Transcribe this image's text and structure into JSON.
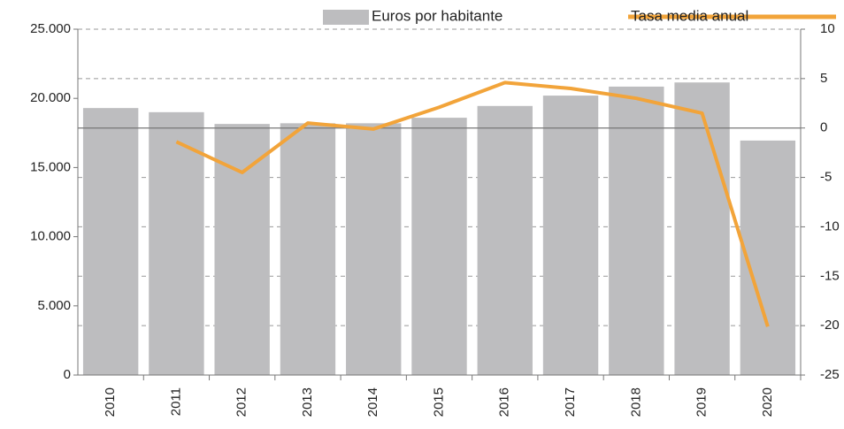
{
  "chart_data": {
    "type": "bar_line",
    "categories": [
      "2010",
      "2011",
      "2012",
      "2013",
      "2014",
      "2015",
      "2016",
      "2017",
      "2018",
      "2019",
      "2020"
    ],
    "series": [
      {
        "name": "Euros por habitante",
        "color": "#bdbdbf",
        "type": "bar",
        "axis": "y",
        "values": [
          19300,
          19000,
          18150,
          18200,
          18200,
          18600,
          19450,
          20200,
          20850,
          21150,
          16950
        ]
      },
      {
        "name": "Tasa media anual",
        "color": "#f2a43a",
        "type": "line",
        "axis": "y2",
        "values": [
          null,
          -1.4,
          -4.5,
          0.5,
          -0.1,
          2.1,
          4.6,
          4.0,
          3.0,
          1.5,
          -20.1
        ]
      }
    ],
    "ylim": [
      0,
      25000
    ],
    "yticks": [
      0,
      {
        "value": 5000,
        "label": "5.000"
      },
      {
        "value": 10000,
        "label": "10.000"
      },
      {
        "value": 15000,
        "label": "15.000"
      },
      {
        "value": 20000,
        "label": "20.000"
      },
      {
        "value": 25000,
        "label": "25.000"
      }
    ],
    "y2lim": [
      -25,
      10
    ],
    "y2ticks": [
      -25,
      -20,
      -15,
      -10,
      -5,
      0,
      5,
      10
    ],
    "grid": true
  }
}
